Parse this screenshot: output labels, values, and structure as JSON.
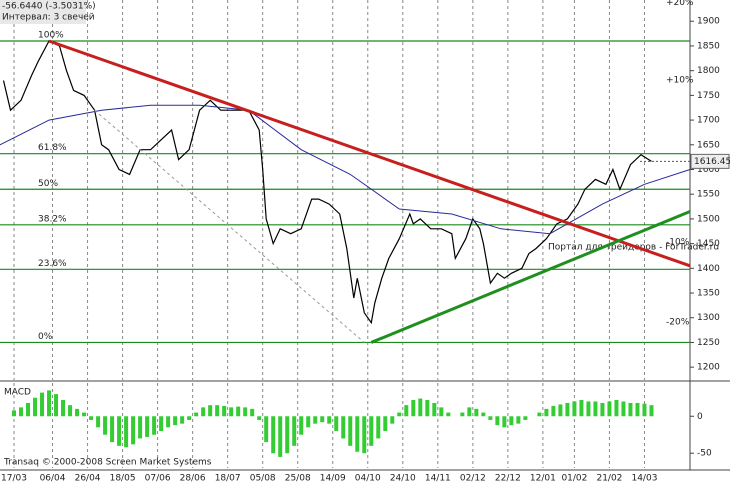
{
  "chart_data": [
    {
      "type": "line",
      "info": "-56.6440 (-3.5031%)",
      "interval": "Интервал: 3 свечей",
      "watermark": "Портал для трейдеров - ForTrader.ru",
      "xlim": [
        -4,
        193
      ],
      "ylim": [
        1174,
        1943
      ],
      "yticks": [
        1200,
        1250,
        1300,
        1350,
        1400,
        1450,
        1500,
        1550,
        1600,
        1650,
        1700,
        1750,
        1800,
        1850,
        1900
      ],
      "series": [
        {
          "color": "#000000",
          "x": [
            -3,
            -1,
            2,
            5,
            7,
            10,
            13,
            15,
            17,
            20,
            23,
            25,
            27,
            30,
            33,
            36,
            39,
            42,
            45,
            47,
            50,
            53,
            56,
            59,
            62,
            65,
            67,
            70,
            71,
            72,
            74,
            76,
            79,
            82,
            85,
            87,
            90,
            93,
            95,
            97,
            98,
            100,
            102,
            103,
            105,
            107,
            110,
            113,
            114,
            116,
            119,
            122,
            125,
            126,
            129,
            131,
            133,
            134,
            136,
            138,
            140,
            142,
            145,
            147,
            149,
            152,
            155,
            158,
            161,
            163,
            166,
            169,
            171,
            173,
            176,
            179,
            182
          ],
          "values": [
            1780,
            1720,
            1740,
            1790,
            1820,
            1860,
            1850,
            1800,
            1760,
            1750,
            1720,
            1650,
            1640,
            1600,
            1590,
            1640,
            1640,
            1660,
            1680,
            1620,
            1640,
            1720,
            1740,
            1720,
            1720,
            1720,
            1720,
            1680,
            1600,
            1500,
            1450,
            1480,
            1470,
            1480,
            1540,
            1540,
            1530,
            1510,
            1440,
            1340,
            1380,
            1310,
            1290,
            1330,
            1380,
            1420,
            1460,
            1510,
            1490,
            1500,
            1480,
            1480,
            1470,
            1420,
            1460,
            1500,
            1480,
            1450,
            1370,
            1390,
            1380,
            1390,
            1400,
            1430,
            1440,
            1460,
            1490,
            1500,
            1530,
            1560,
            1580,
            1570,
            1600,
            1560,
            1610,
            1630,
            1616.45
          ]
        },
        {
          "color": "#2a2a9a",
          "x": [
            -4,
            10,
            25,
            39,
            53,
            67,
            82,
            96,
            110,
            125,
            139,
            153,
            168,
            180,
            193
          ],
          "values": [
            1650,
            1700,
            1720,
            1730,
            1730,
            1720,
            1640,
            1590,
            1520,
            1510,
            1480,
            1470,
            1530,
            1570,
            1600
          ]
        }
      ],
      "last_price": 1616.45,
      "levels": [
        {
          "label": "100%",
          "value": 1860
        },
        {
          "label": "61.8%",
          "value": 1632
        },
        {
          "label": "50%",
          "value": 1560
        },
        {
          "label": "38.2%",
          "value": 1488
        },
        {
          "label": "23.6%",
          "value": 1398
        },
        {
          "label": "0%",
          "value": 1250
        }
      ],
      "level_color": "#1a8a1a",
      "trendlines": [
        {
          "color": "#c81e1e",
          "width": 3,
          "x": [
            10,
            193
          ],
          "y": [
            1860,
            1405
          ]
        },
        {
          "color": "#1f8f1f",
          "width": 3,
          "x": [
            102,
            193
          ],
          "y": [
            1250,
            1515
          ]
        },
        {
          "color": "#9a9a9a",
          "width": 1,
          "x": [
            23,
            100
          ],
          "y": [
            1720,
            1250
          ]
        }
      ],
      "percent_labels": [
        {
          "label": "+20%",
          "value": 1938,
          "color": "#1a9a1a"
        },
        {
          "label": "+10%",
          "value": 1781,
          "color": "#1a9a1a"
        },
        {
          "label": "-10%",
          "value": 1453,
          "color": "#b01818"
        },
        {
          "label": "-20%",
          "value": 1291,
          "color": "#b01818"
        }
      ]
    },
    {
      "type": "bar",
      "title": "MACD",
      "footer": "Transaq © 2000-2008 Screen Market Systems",
      "color": "#33cc33",
      "xlim": [
        -4,
        193
      ],
      "ylim": [
        -70,
        45
      ],
      "yticks": [
        0,
        -50
      ],
      "xticks": [
        {
          "value": 0,
          "label": "17/03"
        },
        {
          "value": 11,
          "label": "06/04"
        },
        {
          "value": 21,
          "label": "26/04"
        },
        {
          "value": 31,
          "label": "18/05"
        },
        {
          "value": 41,
          "label": "07/06"
        },
        {
          "value": 51,
          "label": "28/06"
        },
        {
          "value": 61,
          "label": "18/07"
        },
        {
          "value": 71,
          "label": "05/08"
        },
        {
          "value": 81,
          "label": "25/08"
        },
        {
          "value": 91,
          "label": "14/09"
        },
        {
          "value": 101,
          "label": "04/10"
        },
        {
          "value": 111,
          "label": "24/10"
        },
        {
          "value": 121,
          "label": "14/11"
        },
        {
          "value": 131,
          "label": "02/12"
        },
        {
          "value": 141,
          "label": "22/12"
        },
        {
          "value": 151,
          "label": "12/01"
        },
        {
          "value": 160,
          "label": "01/02"
        },
        {
          "value": 170,
          "label": "21/02"
        },
        {
          "value": 180,
          "label": "14/03"
        }
      ],
      "x": [
        0,
        2,
        4,
        6,
        8,
        10,
        12,
        14,
        16,
        18,
        20,
        22,
        24,
        26,
        28,
        30,
        32,
        34,
        36,
        38,
        40,
        42,
        44,
        46,
        48,
        50,
        52,
        54,
        56,
        58,
        60,
        62,
        64,
        66,
        68,
        70,
        72,
        74,
        76,
        78,
        80,
        82,
        84,
        86,
        88,
        90,
        92,
        94,
        96,
        98,
        100,
        102,
        104,
        106,
        108,
        110,
        112,
        114,
        116,
        118,
        120,
        122,
        124,
        126,
        128,
        130,
        132,
        134,
        136,
        138,
        140,
        142,
        144,
        146,
        148,
        150,
        152,
        154,
        156,
        158,
        160,
        162,
        164,
        166,
        168,
        170,
        172,
        174,
        176,
        178,
        180,
        182
      ],
      "values": [
        8,
        12,
        18,
        25,
        32,
        35,
        30,
        22,
        15,
        10,
        5,
        -5,
        -15,
        -25,
        -35,
        -40,
        -42,
        -38,
        -30,
        -28,
        -25,
        -20,
        -15,
        -12,
        -10,
        -5,
        5,
        12,
        15,
        15,
        14,
        12,
        13,
        12,
        10,
        -5,
        -35,
        -50,
        -55,
        -50,
        -40,
        -25,
        -15,
        -10,
        -8,
        -10,
        -20,
        -30,
        -40,
        -48,
        -50,
        -40,
        -30,
        -20,
        -10,
        5,
        15,
        22,
        24,
        22,
        18,
        12,
        5,
        0,
        5,
        12,
        10,
        5,
        -5,
        -12,
        -15,
        -12,
        -10,
        -5,
        0,
        5,
        10,
        14,
        16,
        18,
        20,
        22,
        20,
        20,
        18,
        20,
        22,
        20,
        18,
        18,
        17,
        15
      ]
    }
  ]
}
